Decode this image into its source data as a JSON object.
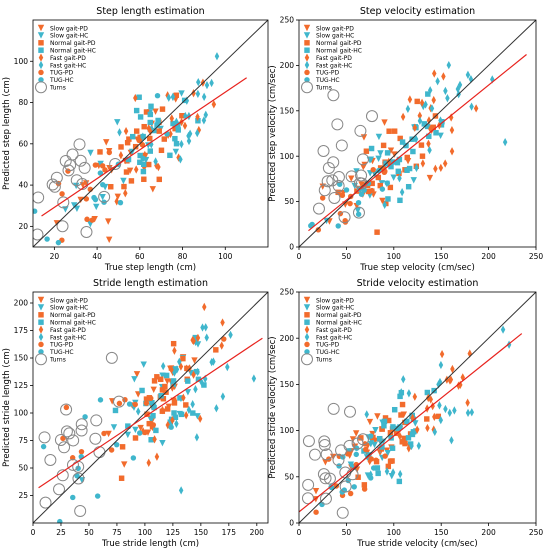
{
  "colors": {
    "pd": "#f26b2c",
    "hc": "#3fb6cc",
    "fit": "#e8231e",
    "identity": "#333333",
    "turns": "#888888"
  },
  "legend": [
    {
      "label": "Slow gait-PD",
      "marker": "tri-down",
      "color": "pd"
    },
    {
      "label": "Slow gait-HC",
      "marker": "tri-down",
      "color": "hc"
    },
    {
      "label": "Normal gait-PD",
      "marker": "square",
      "color": "pd"
    },
    {
      "label": "Normal gait-HC",
      "marker": "square",
      "color": "hc"
    },
    {
      "label": "Fast gait-PD",
      "marker": "diamond",
      "color": "pd"
    },
    {
      "label": "Fast gait-HC",
      "marker": "diamond",
      "color": "hc"
    },
    {
      "label": "TUG-PD",
      "marker": "circle",
      "color": "pd"
    },
    {
      "label": "TUG-HC",
      "marker": "circle",
      "color": "hc"
    },
    {
      "label": "Turns",
      "marker": "ring",
      "color": "turns"
    }
  ],
  "chart_data": [
    {
      "type": "scatter",
      "title": "Step length estimation",
      "xlabel": "True step length (cm)",
      "ylabel": "Predicted step length (cm)",
      "xlim": [
        10,
        120
      ],
      "ylim": [
        10,
        120
      ],
      "xticks": [
        20,
        40,
        60,
        80,
        100
      ],
      "yticks": [
        20,
        40,
        60,
        80,
        100
      ],
      "grid": false,
      "legend_position": "top-left",
      "identity_line": true,
      "regression_line": {
        "x": [
          14,
          110
        ],
        "y": [
          25,
          92
        ]
      },
      "clusters": [
        {
          "name": "Slow gait-PD",
          "center": [
            50,
            48
          ],
          "spread": [
            14,
            12
          ],
          "n": 22
        },
        {
          "name": "Slow gait-HC",
          "center": [
            55,
            50
          ],
          "spread": [
            15,
            12
          ],
          "n": 22
        },
        {
          "name": "Normal gait-PD",
          "center": [
            62,
            58
          ],
          "spread": [
            10,
            10
          ],
          "n": 26
        },
        {
          "name": "Normal gait-HC",
          "center": [
            66,
            62
          ],
          "spread": [
            10,
            10
          ],
          "n": 26
        },
        {
          "name": "Fast gait-PD",
          "center": [
            72,
            66
          ],
          "spread": [
            12,
            12
          ],
          "n": 24
        },
        {
          "name": "Fast gait-HC",
          "center": [
            78,
            72
          ],
          "spread": [
            12,
            12
          ],
          "n": 24
        },
        {
          "name": "TUG-PD",
          "center": [
            40,
            42
          ],
          "spread": [
            18,
            14
          ],
          "n": 14
        },
        {
          "name": "TUG-HC",
          "center": [
            42,
            44
          ],
          "spread": [
            18,
            14
          ],
          "n": 14
        },
        {
          "name": "Turns",
          "center": [
            26,
            40
          ],
          "spread": [
            10,
            14
          ],
          "n": 22
        }
      ]
    },
    {
      "type": "scatter",
      "title": "Step velocity estimation",
      "xlabel": "True step velocity (cm/sec)",
      "ylabel": "Predicted step velocity (cm/sec)",
      "xlim": [
        0,
        250
      ],
      "ylim": [
        0,
        250
      ],
      "xticks": [
        0,
        50,
        100,
        150,
        200,
        250
      ],
      "yticks": [
        0,
        50,
        100,
        150,
        200,
        250
      ],
      "grid": false,
      "legend_position": "top-left",
      "identity_line": true,
      "regression_line": {
        "x": [
          10,
          240
        ],
        "y": [
          18,
          212
        ]
      },
      "clusters": [
        {
          "name": "Slow gait-PD",
          "center": [
            70,
            72
          ],
          "spread": [
            25,
            22
          ],
          "n": 22
        },
        {
          "name": "Slow gait-HC",
          "center": [
            80,
            80
          ],
          "spread": [
            25,
            22
          ],
          "n": 22
        },
        {
          "name": "Normal gait-PD",
          "center": [
            105,
            100
          ],
          "spread": [
            22,
            20
          ],
          "n": 26
        },
        {
          "name": "Normal gait-HC",
          "center": [
            115,
            110
          ],
          "spread": [
            22,
            20
          ],
          "n": 26
        },
        {
          "name": "Fast gait-PD",
          "center": [
            135,
            125
          ],
          "spread": [
            28,
            26
          ],
          "n": 24
        },
        {
          "name": "Fast gait-HC",
          "center": [
            150,
            140
          ],
          "spread": [
            30,
            28
          ],
          "n": 24
        },
        {
          "name": "TUG-PD",
          "center": [
            60,
            60
          ],
          "spread": [
            25,
            22
          ],
          "n": 14
        },
        {
          "name": "TUG-HC",
          "center": [
            65,
            62
          ],
          "spread": [
            25,
            22
          ],
          "n": 14
        },
        {
          "name": "Turns",
          "center": [
            45,
            75
          ],
          "spread": [
            20,
            30
          ],
          "n": 22
        }
      ]
    },
    {
      "type": "scatter",
      "title": "Stride length estimation",
      "xlabel": "True stride length (cm)",
      "ylabel": "Predicted stride length (cm)",
      "xlim": [
        0,
        210
      ],
      "ylim": [
        0,
        210
      ],
      "xticks": [
        0,
        25,
        50,
        75,
        100,
        125,
        150,
        175,
        200
      ],
      "yticks": [
        25,
        50,
        75,
        100,
        125,
        150,
        175,
        200
      ],
      "grid": false,
      "legend_position": "top-left",
      "identity_line": true,
      "regression_line": {
        "x": [
          5,
          205
        ],
        "y": [
          32,
          168
        ]
      },
      "clusters": [
        {
          "name": "Slow gait-PD",
          "center": [
            105,
            102
          ],
          "spread": [
            25,
            22
          ],
          "n": 22
        },
        {
          "name": "Slow gait-HC",
          "center": [
            110,
            105
          ],
          "spread": [
            25,
            22
          ],
          "n": 22
        },
        {
          "name": "Normal gait-PD",
          "center": [
            120,
            115
          ],
          "spread": [
            18,
            18
          ],
          "n": 26
        },
        {
          "name": "Normal gait-HC",
          "center": [
            125,
            120
          ],
          "spread": [
            18,
            18
          ],
          "n": 26
        },
        {
          "name": "Fast gait-PD",
          "center": [
            140,
            130
          ],
          "spread": [
            22,
            24
          ],
          "n": 24
        },
        {
          "name": "Fast gait-HC",
          "center": [
            145,
            135
          ],
          "spread": [
            22,
            24
          ],
          "n": 24
        },
        {
          "name": "TUG-PD",
          "center": [
            60,
            70
          ],
          "spread": [
            35,
            25
          ],
          "n": 14
        },
        {
          "name": "TUG-HC",
          "center": [
            65,
            72
          ],
          "spread": [
            35,
            25
          ],
          "n": 14
        },
        {
          "name": "Turns",
          "center": [
            30,
            65
          ],
          "spread": [
            20,
            28
          ],
          "n": 22
        }
      ]
    },
    {
      "type": "scatter",
      "title": "Stride velocity estimation",
      "xlabel": "True stride velocity (cm/sec)",
      "ylabel": "Predicted stride velocity (cm/sec)",
      "xlim": [
        0,
        250
      ],
      "ylim": [
        0,
        250
      ],
      "xticks": [
        0,
        50,
        100,
        150,
        200,
        250
      ],
      "yticks": [
        0,
        50,
        100,
        150,
        200,
        250
      ],
      "grid": false,
      "legend_position": "top-left",
      "identity_line": true,
      "regression_line": {
        "x": [
          0,
          235
        ],
        "y": [
          12,
          205
        ]
      },
      "clusters": [
        {
          "name": "Slow gait-PD",
          "center": [
            70,
            70
          ],
          "spread": [
            25,
            22
          ],
          "n": 22
        },
        {
          "name": "Slow gait-HC",
          "center": [
            80,
            78
          ],
          "spread": [
            25,
            22
          ],
          "n": 22
        },
        {
          "name": "Normal gait-PD",
          "center": [
            100,
            95
          ],
          "spread": [
            22,
            20
          ],
          "n": 26
        },
        {
          "name": "Normal gait-HC",
          "center": [
            110,
            105
          ],
          "spread": [
            22,
            20
          ],
          "n": 26
        },
        {
          "name": "Fast gait-PD",
          "center": [
            135,
            125
          ],
          "spread": [
            28,
            26
          ],
          "n": 24
        },
        {
          "name": "Fast gait-HC",
          "center": [
            150,
            140
          ],
          "spread": [
            30,
            30
          ],
          "n": 24
        },
        {
          "name": "TUG-PD",
          "center": [
            45,
            50
          ],
          "spread": [
            25,
            22
          ],
          "n": 14
        },
        {
          "name": "TUG-HC",
          "center": [
            50,
            52
          ],
          "spread": [
            25,
            22
          ],
          "n": 14
        },
        {
          "name": "Turns",
          "center": [
            25,
            50
          ],
          "spread": [
            18,
            28
          ],
          "n": 22
        }
      ]
    }
  ]
}
